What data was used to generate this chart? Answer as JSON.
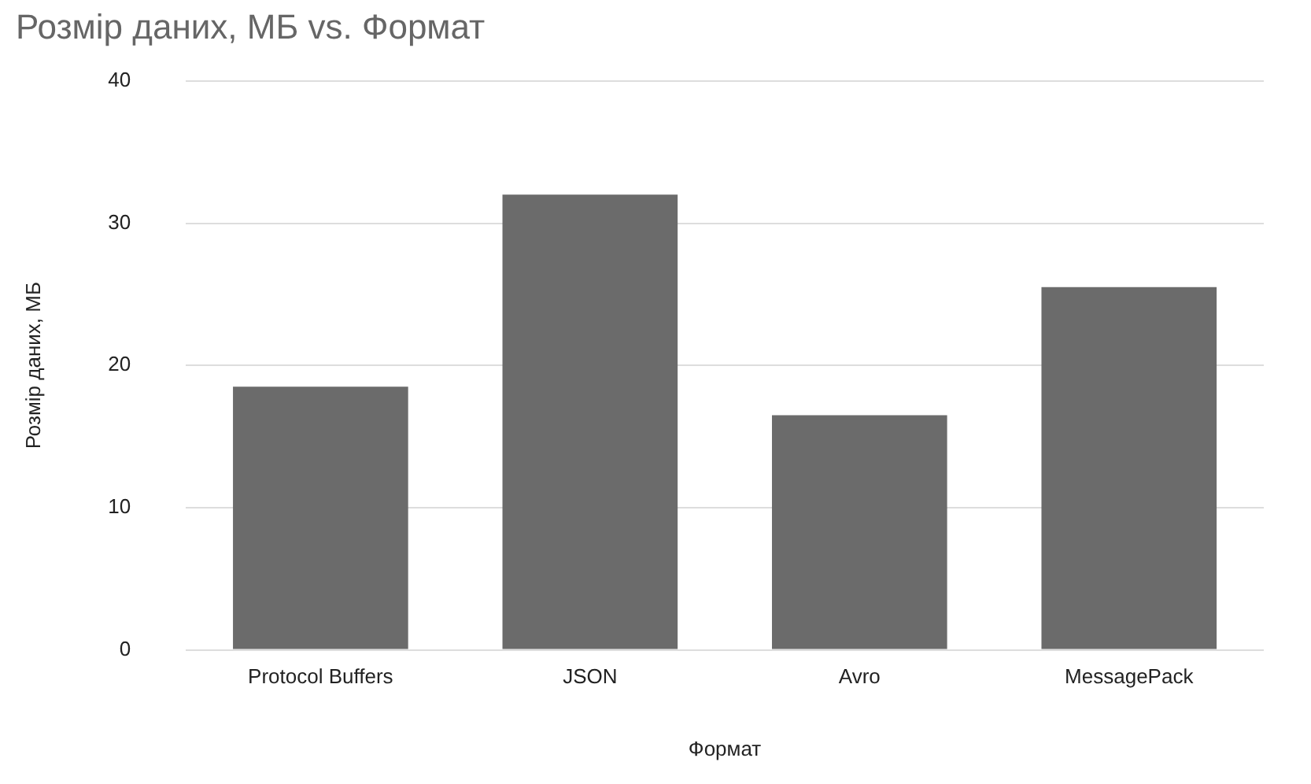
{
  "chart_data": {
    "type": "bar",
    "title": "Розмір даних, МБ vs. Формат",
    "xlabel": "Формат",
    "ylabel": "Розмір даних, МБ",
    "categories": [
      "Protocol Buffers",
      "JSON",
      "Avro",
      "MessagePack"
    ],
    "values": [
      18.5,
      32,
      16.5,
      25.5
    ],
    "color": "#6b6b6b",
    "ylim": [
      0,
      40
    ],
    "yticks": [
      0,
      10,
      20,
      30,
      40
    ],
    "grid": "y"
  }
}
